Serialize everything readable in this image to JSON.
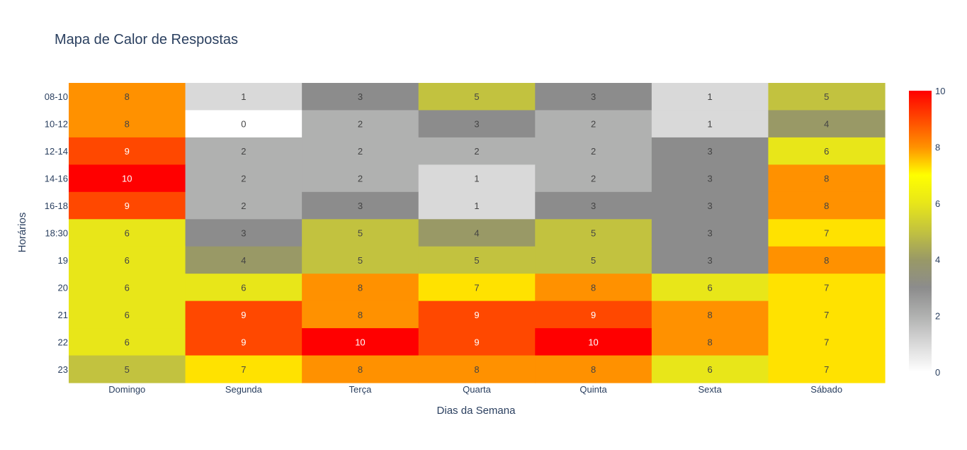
{
  "chart_data": {
    "type": "heatmap",
    "title": "Mapa de Calor de Respostas",
    "xlabel": "Dias da Semana",
    "ylabel": "Horários",
    "x": [
      "Domingo",
      "Segunda",
      "Terça",
      "Quarta",
      "Quinta",
      "Sexta",
      "Sábado"
    ],
    "y": [
      "08-10",
      "10-12",
      "12-14",
      "14-16",
      "16-18",
      "18:30",
      "19",
      "20",
      "21",
      "22",
      "23"
    ],
    "z": [
      [
        8,
        1,
        3,
        5,
        3,
        1,
        5
      ],
      [
        8,
        0,
        2,
        3,
        2,
        1,
        4
      ],
      [
        9,
        2,
        2,
        2,
        2,
        3,
        6
      ],
      [
        10,
        2,
        2,
        1,
        2,
        3,
        8
      ],
      [
        9,
        2,
        3,
        1,
        3,
        3,
        8
      ],
      [
        6,
        3,
        5,
        4,
        5,
        3,
        7
      ],
      [
        6,
        4,
        5,
        5,
        5,
        3,
        8
      ],
      [
        6,
        6,
        8,
        7,
        8,
        6,
        7
      ],
      [
        6,
        9,
        8,
        9,
        9,
        8,
        7
      ],
      [
        6,
        9,
        10,
        9,
        10,
        8,
        7
      ],
      [
        5,
        7,
        8,
        8,
        8,
        6,
        7
      ]
    ],
    "zrange": [
      0,
      10
    ],
    "colorbar_ticks": [
      0,
      2,
      4,
      6,
      8,
      10
    ],
    "colorscale": {
      "0": "#ffffff",
      "1": "#d9d9d9",
      "2": "#b0b1b0",
      "3": "#8c8c8c",
      "4": "#999966",
      "5": "#c2c23f",
      "6": "#e8e619",
      "7": "#ffe200",
      "8": "#ff9100",
      "9": "#ff4800",
      "10": "#ff0000"
    },
    "colorbar_gradient": [
      "#ffffff",
      "#d9d9d9",
      "#b0b1b0",
      "#8c8c8c",
      "#999966",
      "#c2c23f",
      "#e8e619",
      "#ffff00",
      "#ff9100",
      "#ff4800",
      "#ff0000"
    ]
  }
}
